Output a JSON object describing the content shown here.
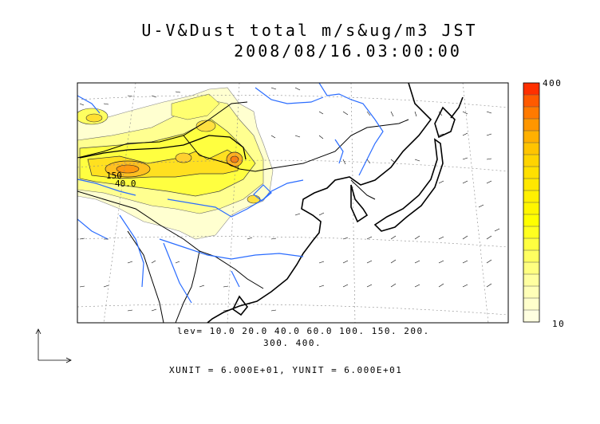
{
  "title": {
    "line1": "U-V&Dust total m/s&ug/m3 JST",
    "line2": "2008/08/16.03:00:00"
  },
  "legend": {
    "levels_line1": "lev= 10.0 20.0 40.0 60.0 100. 150. 200.",
    "levels_line2": "300. 400.",
    "units": "XUNIT = 6.000E+01, YUNIT = 6.000E+01"
  },
  "colorbar": {
    "max_label": "400",
    "min_label": "10",
    "colors": [
      "#ffffe0",
      "#ffffc0",
      "#ffffa0",
      "#ffff80",
      "#ffff60",
      "#ffff40",
      "#ffff00",
      "#fff000",
      "#ffe000",
      "#ffd000",
      "#ffc000",
      "#ffb000",
      "#ffa000",
      "#ff9000",
      "#ff8000",
      "#ff7000",
      "#ff6000",
      "#ff5000",
      "#ff4000",
      "#ff3000"
    ]
  },
  "map_labels": {
    "a": "150",
    "b": "40.0"
  },
  "colors": {
    "river": "#2a6cff",
    "coast": "#000000",
    "grid": "#888888"
  }
}
